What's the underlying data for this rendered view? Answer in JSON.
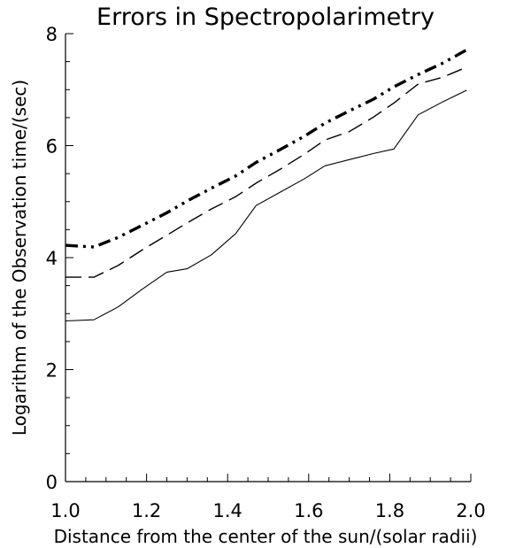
{
  "chart_data": {
    "type": "line",
    "title": "Errors in Spectropolarimetry",
    "xlabel": "Distance from the center of the sun/(solar radii)",
    "ylabel": "Logarithm of the Observation time/(sec)",
    "xlim": [
      1.0,
      2.0
    ],
    "ylim": [
      0,
      8
    ],
    "xticks": [
      "1.0",
      "1.2",
      "1.4",
      "1.6",
      "1.8",
      "2.0"
    ],
    "yticks": [
      "0",
      "2",
      "4",
      "6",
      "8"
    ],
    "grid": false,
    "series": [
      {
        "style": "solid",
        "x": [
          1.0,
          1.07,
          1.13,
          1.19,
          1.25,
          1.3,
          1.36,
          1.42,
          1.47,
          1.53,
          1.59,
          1.64,
          1.7,
          1.76,
          1.81,
          1.87,
          1.93,
          1.99
        ],
        "y": [
          2.87,
          2.89,
          3.12,
          3.44,
          3.74,
          3.8,
          4.05,
          4.43,
          4.93,
          5.17,
          5.41,
          5.64,
          5.75,
          5.86,
          5.94,
          6.55,
          6.78,
          6.99
        ]
      },
      {
        "style": "dashed",
        "x": [
          1.0,
          1.07,
          1.13,
          1.19,
          1.25,
          1.3,
          1.36,
          1.42,
          1.47,
          1.53,
          1.59,
          1.64,
          1.7,
          1.76,
          1.81,
          1.87,
          1.93,
          1.99
        ],
        "y": [
          3.65,
          3.65,
          3.86,
          4.14,
          4.4,
          4.62,
          4.87,
          5.09,
          5.33,
          5.58,
          5.85,
          6.1,
          6.25,
          6.51,
          6.76,
          7.1,
          7.22,
          7.4
        ]
      },
      {
        "style": "dash-dot-dot",
        "x": [
          1.0,
          1.07,
          1.13,
          1.19,
          1.25,
          1.3,
          1.36,
          1.42,
          1.47,
          1.53,
          1.59,
          1.64,
          1.7,
          1.76,
          1.81,
          1.87,
          1.93,
          1.99
        ],
        "y": [
          4.22,
          4.19,
          4.36,
          4.58,
          4.8,
          5.01,
          5.24,
          5.46,
          5.7,
          5.93,
          6.17,
          6.4,
          6.62,
          6.83,
          7.05,
          7.27,
          7.47,
          7.71
        ]
      }
    ]
  }
}
